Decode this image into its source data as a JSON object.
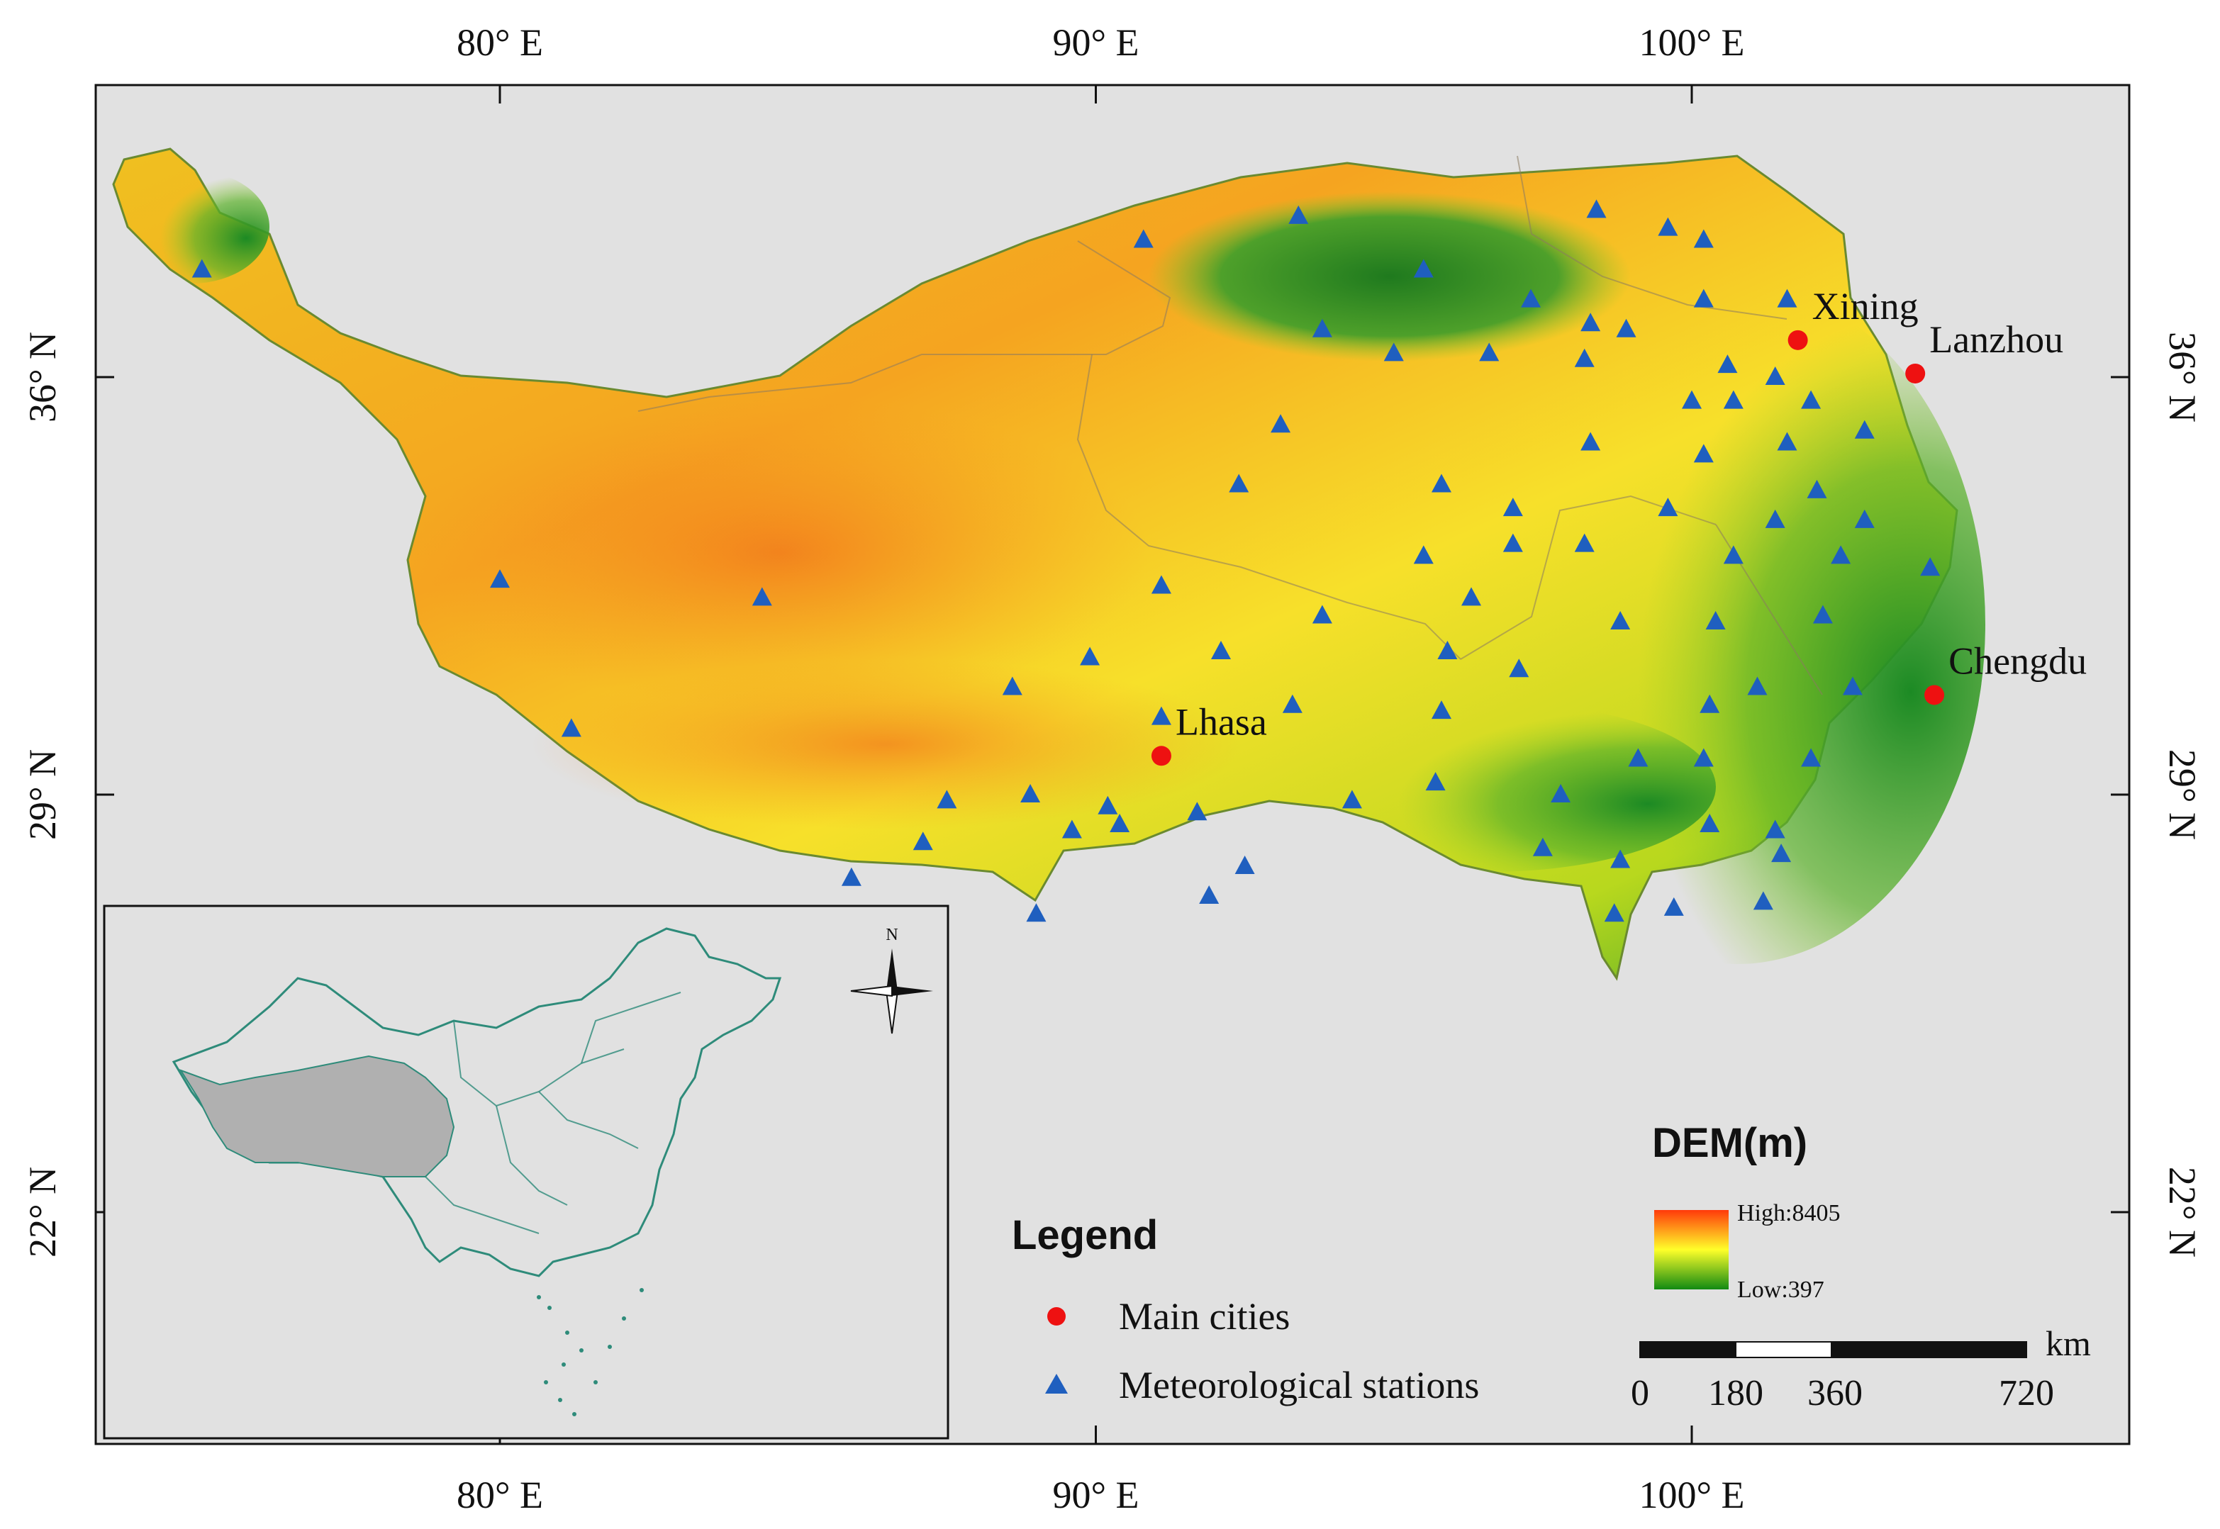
{
  "map": {
    "bounds": {
      "lon_min": 73.2,
      "lon_max": 107.3,
      "lat_min": 17.3,
      "lat_max": 38.8
    },
    "colors": {
      "ocean": "#e1e1e1",
      "city": "#ee1111",
      "station": "#1f5fbf",
      "inset_line": "#2e8b7a",
      "inset_fill": "#b0b0b0"
    },
    "lon_ticks": [
      {
        "value": 80,
        "label": "80° E"
      },
      {
        "value": 90,
        "label": "90° E"
      },
      {
        "value": 100,
        "label": "100° E"
      }
    ],
    "lat_ticks": [
      {
        "value": 36,
        "label": "36° N"
      },
      {
        "value": 29,
        "label": "29° N"
      },
      {
        "value": 22,
        "label": "22° N"
      }
    ],
    "cities": [
      {
        "name": "Lhasa",
        "lon": 91.1,
        "lat": 29.65
      },
      {
        "name": "Xining",
        "lon": 101.78,
        "lat": 36.62
      },
      {
        "name": "Lanzhou",
        "lon": 103.75,
        "lat": 36.06
      },
      {
        "name": "Chengdu",
        "lon": 104.07,
        "lat": 30.67
      }
    ],
    "stations": [
      [
        75.0,
        37.8
      ],
      [
        90.8,
        38.3
      ],
      [
        93.4,
        38.7
      ],
      [
        95.5,
        37.8
      ],
      [
        98.4,
        38.8
      ],
      [
        99.6,
        38.5
      ],
      [
        100.2,
        38.3
      ],
      [
        97.3,
        37.3
      ],
      [
        98.3,
        36.9
      ],
      [
        98.9,
        36.8
      ],
      [
        100.2,
        37.3
      ],
      [
        101.6,
        37.3
      ],
      [
        93.8,
        36.8
      ],
      [
        95.0,
        36.4
      ],
      [
        96.6,
        36.4
      ],
      [
        98.2,
        36.3
      ],
      [
        100.6,
        36.2
      ],
      [
        101.4,
        36.0
      ],
      [
        100.0,
        35.6
      ],
      [
        100.7,
        35.6
      ],
      [
        102.0,
        35.6
      ],
      [
        102.9,
        35.1
      ],
      [
        93.1,
        35.2
      ],
      [
        98.3,
        34.9
      ],
      [
        101.6,
        34.9
      ],
      [
        100.2,
        34.7
      ],
      [
        92.4,
        34.2
      ],
      [
        95.8,
        34.2
      ],
      [
        102.1,
        34.1
      ],
      [
        97.0,
        33.8
      ],
      [
        99.6,
        33.8
      ],
      [
        101.4,
        33.6
      ],
      [
        102.9,
        33.6
      ],
      [
        97.0,
        33.2
      ],
      [
        98.2,
        33.2
      ],
      [
        95.5,
        33.0
      ],
      [
        100.7,
        33.0
      ],
      [
        102.5,
        33.0
      ],
      [
        104.0,
        32.8
      ],
      [
        80.0,
        32.6
      ],
      [
        84.4,
        32.3
      ],
      [
        91.1,
        32.5
      ],
      [
        93.8,
        32.0
      ],
      [
        96.3,
        32.3
      ],
      [
        98.8,
        31.9
      ],
      [
        100.4,
        31.9
      ],
      [
        102.2,
        32.0
      ],
      [
        89.9,
        31.3
      ],
      [
        92.1,
        31.4
      ],
      [
        95.9,
        31.4
      ],
      [
        97.1,
        31.1
      ],
      [
        102.7,
        30.8
      ],
      [
        88.6,
        30.8
      ],
      [
        101.1,
        30.8
      ],
      [
        100.3,
        30.5
      ],
      [
        93.3,
        30.5
      ],
      [
        95.8,
        30.4
      ],
      [
        91.1,
        30.3
      ],
      [
        81.2,
        30.1
      ],
      [
        99.1,
        29.6
      ],
      [
        100.2,
        29.6
      ],
      [
        102.0,
        29.6
      ],
      [
        95.7,
        29.2
      ],
      [
        94.3,
        28.9
      ],
      [
        97.8,
        29.0
      ],
      [
        87.5,
        28.9
      ],
      [
        88.9,
        29.0
      ],
      [
        90.2,
        28.8
      ],
      [
        91.7,
        28.7
      ],
      [
        89.6,
        28.4
      ],
      [
        90.4,
        28.5
      ],
      [
        100.3,
        28.5
      ],
      [
        101.4,
        28.4
      ],
      [
        101.5,
        28.0
      ],
      [
        87.1,
        28.2
      ],
      [
        97.5,
        28.1
      ],
      [
        98.8,
        27.9
      ],
      [
        85.9,
        27.6
      ],
      [
        92.5,
        27.8
      ],
      [
        91.9,
        27.3
      ],
      [
        89.0,
        27.0
      ],
      [
        98.7,
        27.0
      ],
      [
        99.7,
        27.1
      ],
      [
        101.2,
        27.2
      ]
    ]
  },
  "legend": {
    "title": "Legend",
    "cities_label": "Main cities",
    "stations_label": "Meteorological stations"
  },
  "dem": {
    "title": "DEM(m)",
    "high_label": "High:8405",
    "low_label": "Low:397",
    "high_color": "#ff3a0a",
    "mid_color": "#ffff2a",
    "low_color": "#128a12"
  },
  "scalebar": {
    "unit": "km",
    "ticks": [
      "0",
      "180",
      "360",
      "720"
    ]
  },
  "compass": {
    "north_label": "N"
  }
}
